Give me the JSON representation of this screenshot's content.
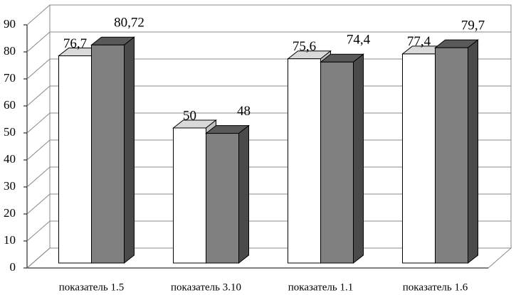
{
  "chart_data": {
    "type": "bar3d",
    "categories": [
      "показатель 1.5",
      "показатель 3.10",
      "показатель 1.1",
      "показатель 1.6"
    ],
    "series": [
      {
        "color": "#ffffff",
        "values": [
          76.7,
          50,
          75.6,
          77.4
        ],
        "value_labels": [
          "76,7",
          "50",
          "75,6",
          "77,4"
        ]
      },
      {
        "color": "#808080",
        "values": [
          80.72,
          48,
          74.4,
          79.7
        ],
        "value_labels": [
          "80,72",
          "48",
          "74,4",
          "79,7"
        ]
      }
    ],
    "ylim": [
      0,
      90
    ],
    "yticks": [
      0,
      10,
      20,
      30,
      40,
      50,
      60,
      70,
      80,
      90
    ],
    "grid": true
  }
}
